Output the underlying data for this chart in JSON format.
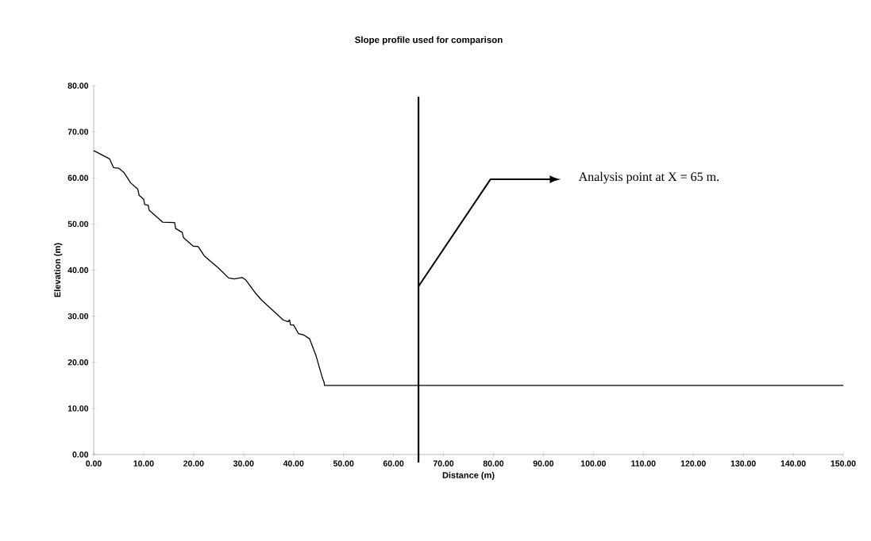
{
  "chart_data": {
    "type": "line",
    "title": "Slope profile used for comparison",
    "xlabel": "Distance (m)",
    "ylabel": "Elevation (m)",
    "x": [
      0,
      3.2,
      4.0,
      5.0,
      6.1,
      7.4,
      8.8,
      9.1,
      10.0,
      10.2,
      10.9,
      11.1,
      13.8,
      16.2,
      16.4,
      17.7,
      18.0,
      19.9,
      20.9,
      22.2,
      24.9,
      27.0,
      28.1,
      29.7,
      30.5,
      32.3,
      33.6,
      37.9,
      38.9,
      39.2,
      39.4,
      40.0,
      41.0,
      42.1,
      43.2,
      44.5,
      45.8,
      46.1,
      46.2,
      150
    ],
    "series": [
      {
        "color": "#000000",
        "values": [
          65.9,
          64.1,
          62.2,
          62.1,
          61.1,
          58.9,
          57.6,
          56.2,
          55.4,
          54.2,
          54.1,
          53.0,
          50.4,
          50.3,
          49.0,
          48.2,
          47.0,
          45.2,
          45.1,
          43.0,
          40.5,
          38.3,
          38.1,
          38.4,
          37.8,
          35.1,
          33.5,
          29.2,
          28.8,
          29.2,
          28.1,
          28.1,
          26.2,
          25.9,
          25.1,
          21.4,
          16.5,
          15.7,
          15.0,
          15.0
        ]
      }
    ],
    "xlim": [
      0,
      150
    ],
    "ylim": [
      0,
      80
    ],
    "xticks": [
      {
        "value": 0,
        "label": "0.00"
      },
      {
        "value": 10,
        "label": "10.00"
      },
      {
        "value": 20,
        "label": "20.00"
      },
      {
        "value": 30,
        "label": "30.00"
      },
      {
        "value": 40,
        "label": "40.00"
      },
      {
        "value": 50,
        "label": "50.00"
      },
      {
        "value": 60,
        "label": "60.00"
      },
      {
        "value": 70,
        "label": "70.00"
      },
      {
        "value": 80,
        "label": "80.00"
      },
      {
        "value": 90,
        "label": "90.00"
      },
      {
        "value": 100,
        "label": "100.00"
      },
      {
        "value": 110,
        "label": "110.00"
      },
      {
        "value": 120,
        "label": "120.00"
      },
      {
        "value": 130,
        "label": "130.00"
      },
      {
        "value": 140,
        "label": "140.00"
      },
      {
        "value": 150,
        "label": "150.00"
      }
    ],
    "yticks": [
      {
        "value": 0,
        "label": "0.00"
      },
      {
        "value": 10,
        "label": "10.00"
      },
      {
        "value": 20,
        "label": "20.00"
      },
      {
        "value": 30,
        "label": "30.00"
      },
      {
        "value": 40,
        "label": "40.00"
      },
      {
        "value": 50,
        "label": "50.00"
      },
      {
        "value": 60,
        "label": "60.00"
      },
      {
        "value": 70,
        "label": "70.00"
      },
      {
        "value": 80,
        "label": "80.00"
      }
    ],
    "ref_lines": [
      {
        "axis": "x",
        "value": 65,
        "color": "#000000"
      }
    ],
    "annotations": [
      "Analysis point at X = 65 m."
    ],
    "line_style": "solid"
  }
}
